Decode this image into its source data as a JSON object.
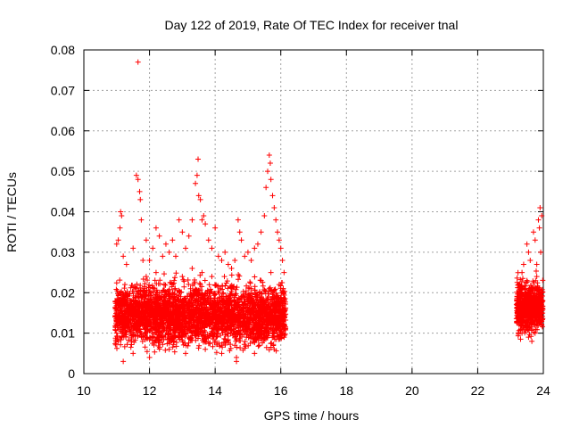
{
  "chart_data": {
    "type": "scatter",
    "title": "Day 122 of 2019, Rate Of TEC Index for receiver tnal",
    "xlabel": "GPS time / hours",
    "ylabel": "ROTI / TECUs",
    "xlim": [
      10,
      24
    ],
    "ylim": [
      0,
      0.08
    ],
    "x_ticks": [
      10,
      12,
      14,
      16,
      18,
      20,
      22,
      24
    ],
    "x_tick_labels": [
      "10",
      "12",
      "14",
      "16",
      "18",
      "20",
      "22",
      "24"
    ],
    "y_ticks": [
      0,
      0.01,
      0.02,
      0.03,
      0.04,
      0.05,
      0.06,
      0.07,
      0.08
    ],
    "y_tick_labels": [
      "0",
      "0.01",
      "0.02",
      "0.03",
      "0.04",
      "0.05",
      "0.06",
      "0.07",
      "0.08"
    ],
    "grid": true,
    "marker": "+",
    "color": "#ff0000",
    "series": [
      {
        "name": "ROTI",
        "points": [
          [
            11.65,
            0.077
          ],
          [
            11.6,
            0.049
          ],
          [
            11.65,
            0.048
          ],
          [
            11.7,
            0.045
          ],
          [
            11.72,
            0.043
          ],
          [
            11.75,
            0.038
          ],
          [
            11.0,
            0.032
          ],
          [
            11.05,
            0.033
          ],
          [
            11.1,
            0.036
          ],
          [
            11.12,
            0.04
          ],
          [
            11.15,
            0.039
          ],
          [
            11.2,
            0.029
          ],
          [
            11.3,
            0.027
          ],
          [
            11.5,
            0.031
          ],
          [
            11.8,
            0.028
          ],
          [
            11.9,
            0.033
          ],
          [
            12.0,
            0.028
          ],
          [
            12.1,
            0.031
          ],
          [
            12.2,
            0.036
          ],
          [
            12.3,
            0.034
          ],
          [
            12.4,
            0.029
          ],
          [
            12.5,
            0.032
          ],
          [
            12.6,
            0.03
          ],
          [
            12.7,
            0.033
          ],
          [
            12.8,
            0.029
          ],
          [
            12.9,
            0.038
          ],
          [
            13.0,
            0.035
          ],
          [
            13.1,
            0.031
          ],
          [
            13.2,
            0.034
          ],
          [
            13.3,
            0.038
          ],
          [
            13.4,
            0.047
          ],
          [
            13.45,
            0.049
          ],
          [
            13.48,
            0.053
          ],
          [
            13.5,
            0.044
          ],
          [
            13.55,
            0.043
          ],
          [
            13.6,
            0.038
          ],
          [
            13.65,
            0.039
          ],
          [
            13.7,
            0.037
          ],
          [
            13.8,
            0.033
          ],
          [
            13.9,
            0.031
          ],
          [
            14.0,
            0.036
          ],
          [
            14.1,
            0.029
          ],
          [
            14.2,
            0.028
          ],
          [
            14.3,
            0.03
          ],
          [
            14.4,
            0.027
          ],
          [
            14.5,
            0.026
          ],
          [
            14.6,
            0.028
          ],
          [
            14.7,
            0.038
          ],
          [
            14.75,
            0.035
          ],
          [
            14.8,
            0.033
          ],
          [
            14.9,
            0.029
          ],
          [
            15.0,
            0.03
          ],
          [
            15.1,
            0.028
          ],
          [
            15.2,
            0.031
          ],
          [
            15.3,
            0.032
          ],
          [
            15.4,
            0.035
          ],
          [
            15.5,
            0.039
          ],
          [
            15.55,
            0.046
          ],
          [
            15.6,
            0.05
          ],
          [
            15.65,
            0.054
          ],
          [
            15.68,
            0.052
          ],
          [
            15.7,
            0.048
          ],
          [
            15.75,
            0.044
          ],
          [
            15.8,
            0.041
          ],
          [
            15.85,
            0.038
          ],
          [
            15.9,
            0.035
          ],
          [
            15.95,
            0.033
          ],
          [
            16.0,
            0.031
          ],
          [
            16.05,
            0.028
          ],
          [
            16.1,
            0.025
          ],
          [
            11.0,
            0.01
          ],
          [
            11.05,
            0.008
          ],
          [
            11.1,
            0.012
          ],
          [
            11.15,
            0.015
          ],
          [
            11.2,
            0.019
          ],
          [
            11.25,
            0.022
          ],
          [
            11.3,
            0.017
          ],
          [
            11.35,
            0.013
          ],
          [
            11.4,
            0.011
          ],
          [
            11.45,
            0.009
          ],
          [
            11.5,
            0.014
          ],
          [
            11.55,
            0.018
          ],
          [
            11.6,
            0.021
          ],
          [
            11.65,
            0.016
          ],
          [
            11.7,
            0.012
          ],
          [
            11.75,
            0.01
          ],
          [
            11.8,
            0.015
          ],
          [
            11.85,
            0.02
          ],
          [
            11.9,
            0.024
          ],
          [
            11.95,
            0.018
          ],
          [
            12.0,
            0.013
          ],
          [
            12.05,
            0.011
          ],
          [
            12.1,
            0.016
          ],
          [
            12.15,
            0.021
          ],
          [
            12.2,
            0.025
          ],
          [
            12.25,
            0.019
          ],
          [
            12.3,
            0.014
          ],
          [
            12.35,
            0.01
          ],
          [
            12.4,
            0.017
          ],
          [
            12.45,
            0.022
          ],
          [
            12.5,
            0.018
          ],
          [
            12.55,
            0.012
          ],
          [
            12.6,
            0.009
          ],
          [
            12.65,
            0.015
          ],
          [
            12.7,
            0.02
          ],
          [
            12.75,
            0.023
          ],
          [
            12.8,
            0.017
          ],
          [
            12.85,
            0.011
          ],
          [
            12.9,
            0.014
          ],
          [
            12.95,
            0.019
          ],
          [
            13.0,
            0.024
          ],
          [
            13.05,
            0.018
          ],
          [
            13.1,
            0.013
          ],
          [
            13.15,
            0.01
          ],
          [
            13.2,
            0.016
          ],
          [
            13.25,
            0.021
          ],
          [
            13.3,
            0.026
          ],
          [
            13.35,
            0.02
          ],
          [
            13.4,
            0.015
          ],
          [
            13.45,
            0.011
          ],
          [
            13.5,
            0.017
          ],
          [
            13.55,
            0.022
          ],
          [
            13.6,
            0.025
          ],
          [
            13.65,
            0.019
          ],
          [
            13.7,
            0.013
          ],
          [
            13.75,
            0.009
          ],
          [
            13.8,
            0.015
          ],
          [
            13.85,
            0.02
          ],
          [
            13.9,
            0.024
          ],
          [
            13.95,
            0.018
          ],
          [
            14.0,
            0.012
          ],
          [
            14.05,
            0.01
          ],
          [
            14.1,
            0.016
          ],
          [
            14.15,
            0.021
          ],
          [
            14.2,
            0.019
          ],
          [
            14.25,
            0.014
          ],
          [
            14.3,
            0.011
          ],
          [
            14.35,
            0.008
          ],
          [
            14.4,
            0.013
          ],
          [
            14.45,
            0.018
          ],
          [
            14.5,
            0.016
          ],
          [
            14.55,
            0.012
          ],
          [
            14.6,
            0.007
          ],
          [
            14.65,
            0.004
          ],
          [
            14.7,
            0.01
          ],
          [
            14.75,
            0.015
          ],
          [
            14.8,
            0.019
          ],
          [
            14.85,
            0.014
          ],
          [
            14.9,
            0.011
          ],
          [
            14.95,
            0.009
          ],
          [
            15.0,
            0.014
          ],
          [
            15.05,
            0.018
          ],
          [
            15.1,
            0.021
          ],
          [
            15.15,
            0.016
          ],
          [
            15.2,
            0.012
          ],
          [
            15.25,
            0.009
          ],
          [
            15.3,
            0.015
          ],
          [
            15.35,
            0.02
          ],
          [
            15.4,
            0.023
          ],
          [
            15.45,
            0.017
          ],
          [
            15.5,
            0.013
          ],
          [
            15.55,
            0.01
          ],
          [
            15.6,
            0.016
          ],
          [
            15.65,
            0.021
          ],
          [
            15.7,
            0.025
          ],
          [
            15.75,
            0.019
          ],
          [
            15.8,
            0.014
          ],
          [
            15.85,
            0.011
          ],
          [
            15.9,
            0.017
          ],
          [
            15.95,
            0.022
          ],
          [
            16.0,
            0.018
          ],
          [
            16.05,
            0.012
          ],
          [
            16.1,
            0.009
          ],
          [
            16.12,
            0.014
          ],
          [
            11.5,
            0.005
          ],
          [
            12.0,
            0.004
          ],
          [
            12.6,
            0.006
          ],
          [
            13.1,
            0.005
          ],
          [
            13.7,
            0.006
          ],
          [
            14.2,
            0.005
          ],
          [
            14.65,
            0.003
          ],
          [
            15.2,
            0.005
          ],
          [
            15.8,
            0.006
          ],
          [
            11.2,
            0.003
          ],
          [
            23.2,
            0.019
          ],
          [
            23.25,
            0.016
          ],
          [
            23.3,
            0.013
          ],
          [
            23.35,
            0.01
          ],
          [
            23.4,
            0.015
          ],
          [
            23.45,
            0.02
          ],
          [
            23.5,
            0.023
          ],
          [
            23.55,
            0.018
          ],
          [
            23.6,
            0.014
          ],
          [
            23.65,
            0.011
          ],
          [
            23.7,
            0.016
          ],
          [
            23.75,
            0.021
          ],
          [
            23.8,
            0.024
          ],
          [
            23.85,
            0.019
          ],
          [
            23.9,
            0.015
          ],
          [
            23.95,
            0.012
          ],
          [
            23.98,
            0.018
          ],
          [
            23.25,
            0.022
          ],
          [
            23.35,
            0.025
          ],
          [
            23.45,
            0.012
          ],
          [
            23.55,
            0.009
          ],
          [
            23.65,
            0.008
          ],
          [
            23.75,
            0.01
          ],
          [
            23.85,
            0.013
          ],
          [
            23.5,
            0.032
          ],
          [
            23.55,
            0.03
          ],
          [
            23.6,
            0.028
          ],
          [
            23.7,
            0.035
          ],
          [
            23.75,
            0.033
          ],
          [
            23.8,
            0.027
          ],
          [
            23.85,
            0.038
          ],
          [
            23.88,
            0.036
          ],
          [
            23.9,
            0.041
          ],
          [
            23.95,
            0.039
          ],
          [
            23.92,
            0.03
          ],
          [
            23.4,
            0.027
          ]
        ]
      }
    ]
  }
}
